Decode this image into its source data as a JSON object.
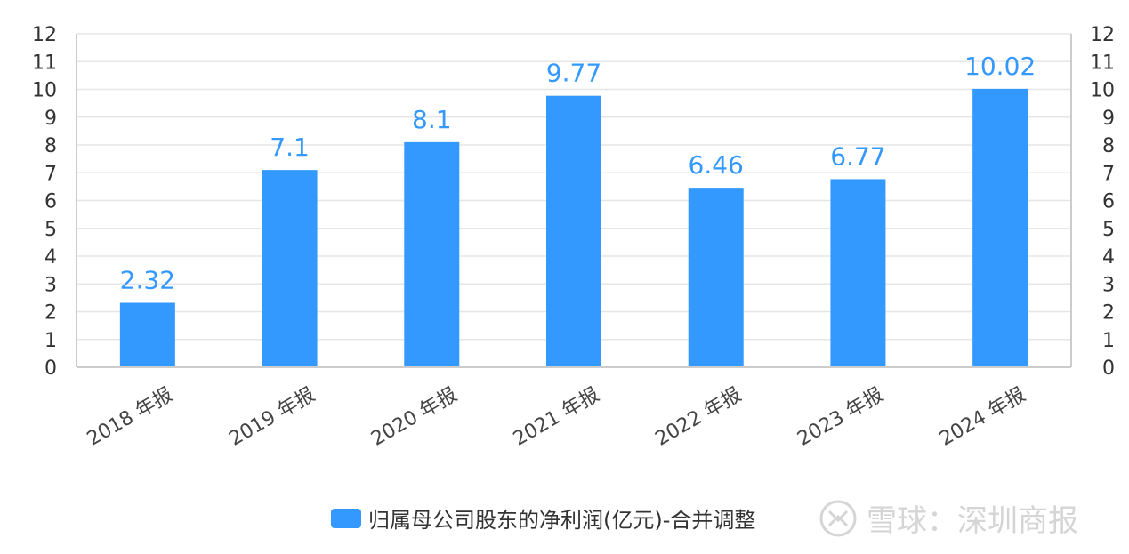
{
  "chart_data": {
    "type": "bar",
    "categories": [
      "2018 年报",
      "2019 年报",
      "2020 年报",
      "2021 年报",
      "2022 年报",
      "2023 年报",
      "2024 年报"
    ],
    "series": [
      {
        "name": "归属母公司股东的净利润(亿元)-合并调整",
        "values": [
          2.32,
          7.1,
          8.1,
          9.77,
          6.46,
          6.77,
          10.02
        ]
      }
    ],
    "data_labels": [
      "2.32",
      "7.1",
      "8.1",
      "9.77",
      "6.46",
      "6.77",
      "10.02"
    ],
    "ylim": [
      0,
      12
    ],
    "yticks": [
      "0",
      "1",
      "2",
      "3",
      "4",
      "5",
      "6",
      "7",
      "8",
      "9",
      "10",
      "11",
      "12"
    ],
    "y_axis_left": true,
    "y_axis_right": true,
    "grid": true,
    "legend_position": "bottom",
    "colors": {
      "bar": "#3399ff",
      "label": "#3399ff",
      "grid": "#e6e6e6",
      "axis": "#cccccc"
    }
  },
  "legend": {
    "label": "归属母公司股东的净利润(亿元)-合并调整"
  },
  "watermark": {
    "text": "雪球：深圳商报",
    "icon": "snowball-logo-icon"
  }
}
